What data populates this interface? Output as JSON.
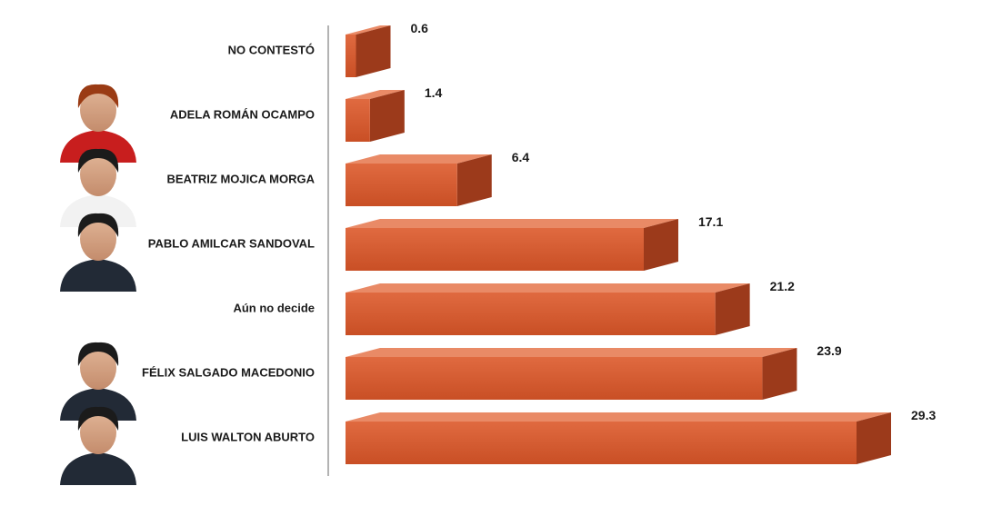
{
  "chart_data": {
    "type": "bar",
    "orientation": "horizontal",
    "categories": [
      "NO CONTESTÓ",
      "ADELA ROMÁN OCAMPO",
      "BEATRIZ MOJICA MORGA",
      "PABLO AMILCAR SANDOVAL",
      "Aún no decide",
      "FÉLIX SALGADO MACEDONIO",
      "LUIS WALTON ABURTO"
    ],
    "values": [
      0.6,
      1.4,
      6.4,
      17.1,
      21.2,
      23.9,
      29.3
    ],
    "value_labels": [
      "0.6",
      "1.4",
      "6.4",
      "17.1",
      "21.2",
      "23.9",
      "29.3"
    ],
    "photos": [
      false,
      true,
      true,
      true,
      false,
      true,
      true
    ],
    "title": "",
    "xlabel": "",
    "ylabel": "",
    "xlim": [
      0,
      29.3
    ],
    "grid": false,
    "legend": "none",
    "style": "3d",
    "colors": {
      "bar_front": "#d95c32",
      "bar_top": "#e98a66",
      "bar_side": "#9c3a1b",
      "axis": "#9a9a9a"
    }
  }
}
